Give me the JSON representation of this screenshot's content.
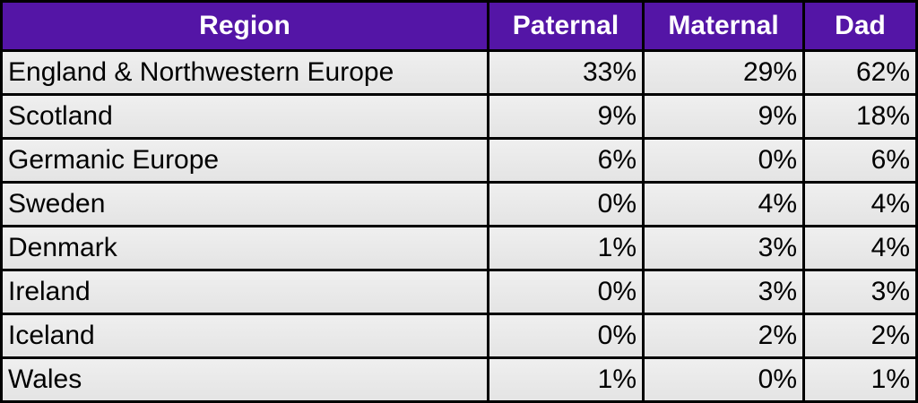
{
  "table": {
    "header": [
      "Region",
      "Paternal",
      "Maternal",
      "Dad"
    ],
    "rows": [
      [
        "England & Northwestern Europe",
        "33%",
        "29%",
        "62%"
      ],
      [
        "Scotland",
        "9%",
        "9%",
        "18%"
      ],
      [
        "Germanic Europe",
        "6%",
        "0%",
        "6%"
      ],
      [
        "Sweden",
        "0%",
        "4%",
        "4%"
      ],
      [
        "Denmark",
        "1%",
        "3%",
        "4%"
      ],
      [
        "Ireland",
        "0%",
        "3%",
        "3%"
      ],
      [
        "Iceland",
        "0%",
        "2%",
        "2%"
      ],
      [
        "Wales",
        "1%",
        "0%",
        "1%"
      ]
    ]
  }
}
